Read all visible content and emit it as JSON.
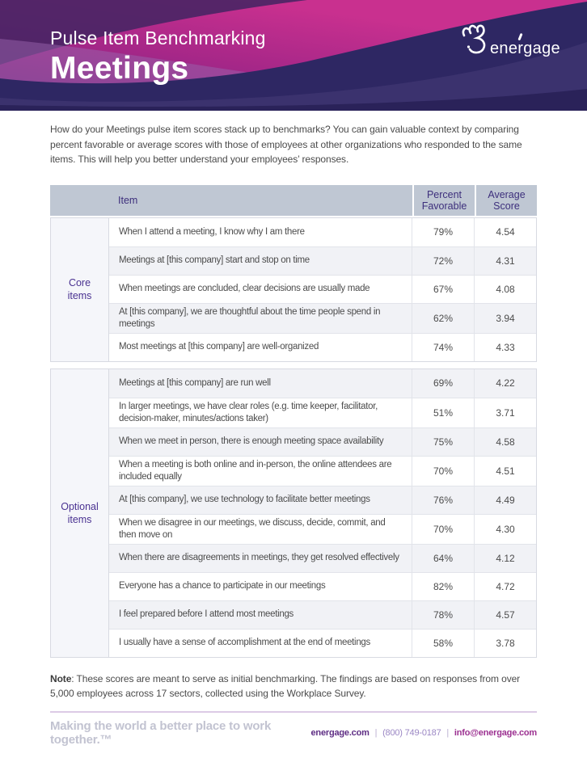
{
  "header": {
    "eyebrow": "Pulse Item Benchmarking",
    "title": "Meetings",
    "brand": "energage"
  },
  "intro": "How do your Meetings pulse item scores stack up to benchmarks? You can gain valuable context by comparing percent favorable or average scores with those of employees at other organizations who responded to the same items. This will help you better understand your employees’ responses.",
  "table": {
    "columns": {
      "item": "Item",
      "percent": "Percent Favorable",
      "average": "Average Score"
    },
    "sections": [
      {
        "group": "Core items",
        "rows": [
          {
            "item": "When I attend a meeting, I know why I am there",
            "percent": "79%",
            "average": "4.54"
          },
          {
            "item": "Meetings at [this company] start and stop on time",
            "percent": "72%",
            "average": "4.31"
          },
          {
            "item": "When meetings are concluded, clear decisions are usually made",
            "percent": "67%",
            "average": "4.08"
          },
          {
            "item": "At [this company], we are thoughtful about the time people spend in meetings",
            "percent": "62%",
            "average": "3.94"
          },
          {
            "item": "Most meetings at [this company] are well-organized",
            "percent": "74%",
            "average": "4.33"
          }
        ]
      },
      {
        "group": "Optional items",
        "rows": [
          {
            "item": "Meetings at [this company] are run well",
            "percent": "69%",
            "average": "4.22"
          },
          {
            "item": "In larger meetings, we have clear roles (e.g. time keeper, facilitator, decision-maker, minutes/actions taker)",
            "percent": "51%",
            "average": "3.71"
          },
          {
            "item": "When we meet in person, there is enough meeting space availability",
            "percent": "75%",
            "average": "4.58"
          },
          {
            "item": "When a meeting is both online and in-person, the online attendees are included equally",
            "percent": "70%",
            "average": "4.51"
          },
          {
            "item": "At [this company], we use technology to facilitate better meetings",
            "percent": "76%",
            "average": "4.49"
          },
          {
            "item": "When we disagree in our meetings, we discuss, decide, commit, and then move on",
            "percent": "70%",
            "average": "4.30"
          },
          {
            "item": "When there are disagreements in meetings, they get resolved effectively",
            "percent": "64%",
            "average": "4.12"
          },
          {
            "item": "Everyone has a chance to participate in our meetings",
            "percent": "82%",
            "average": "4.72"
          },
          {
            "item": "I feel prepared before I attend most meetings",
            "percent": "78%",
            "average": "4.57"
          },
          {
            "item": "I usually have a sense of accomplishment at the end of meetings",
            "percent": "58%",
            "average": "3.78"
          }
        ]
      }
    ]
  },
  "note": {
    "label": "Note",
    "text": ": These scores are meant to serve as initial benchmarking. The findings are based on responses from over 5,000 employees across 17 sectors, collected using the Workplace Survey."
  },
  "footer": {
    "tagline": "Making the world a better place to work together.™",
    "website": "energage.com",
    "separator": "|",
    "phone": "(800) 749-0187",
    "email": "info@energage.com"
  },
  "colors": {
    "brand_magenta": "#c9308f",
    "brand_navy": "#2e2763",
    "brand_purple": "#5e2d84",
    "table_header_bg": "#bfc7d3",
    "group_label_purple": "#4a3291",
    "row_shade": "#f1f2f6",
    "footer_rule": "#dccae6",
    "tagline_gray": "#c2c3d1",
    "email_magenta": "#9c3191"
  }
}
